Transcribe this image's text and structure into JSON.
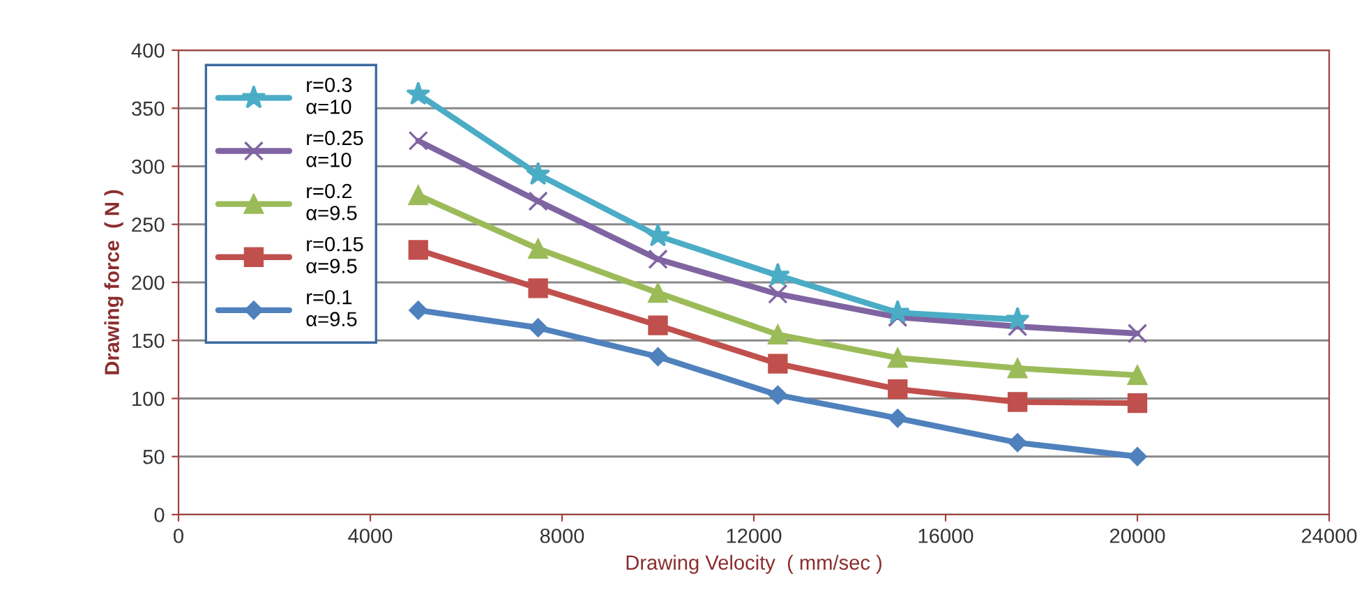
{
  "chart_data": {
    "type": "line",
    "xlabel": "Drawing Velocity  ( mm/sec )",
    "ylabel": "Drawing force  ( N )",
    "x": [
      5000,
      7500,
      10000,
      12500,
      15000,
      17500,
      20000
    ],
    "xlim": [
      0,
      24000
    ],
    "xticks": [
      0,
      4000,
      8000,
      12000,
      16000,
      20000,
      24000
    ],
    "ylim": [
      0,
      400
    ],
    "yticks": [
      0,
      50,
      100,
      150,
      200,
      250,
      300,
      350,
      400
    ],
    "grid": "y",
    "legend": "top left",
    "line_style": "solid",
    "series": [
      {
        "name": "r=0.3\nα=10",
        "color": "#4bacc6",
        "marker": "star",
        "x": [
          5000,
          7500,
          10000,
          12500,
          15000,
          17500
        ],
        "values": [
          362,
          293,
          240,
          206,
          174,
          168
        ]
      },
      {
        "name": "r=0.25\nα=10",
        "color": "#8064a2",
        "marker": "cross",
        "values": [
          322,
          270,
          220,
          190,
          170,
          162,
          156
        ]
      },
      {
        "name": "r=0.2\nα=9.5",
        "color": "#9bbb59",
        "marker": "triangle",
        "values": [
          275,
          229,
          191,
          155,
          135,
          126,
          120
        ]
      },
      {
        "name": "r=0.15\nα=9.5",
        "color": "#c0504d",
        "marker": "square",
        "values": [
          228,
          195,
          163,
          130,
          108,
          97,
          96
        ]
      },
      {
        "name": "r=0.1\nα=9.5",
        "color": "#4f81bd",
        "marker": "diamond",
        "values": [
          176,
          161,
          136,
          103,
          83,
          62,
          50
        ]
      }
    ]
  }
}
